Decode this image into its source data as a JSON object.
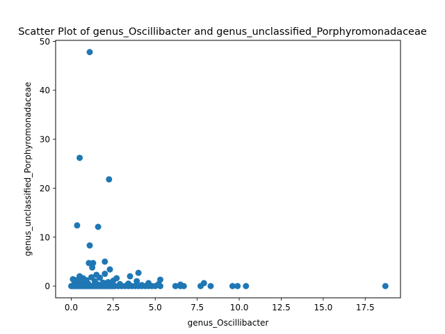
{
  "chart_data": {
    "type": "scatter",
    "title": "Scatter Plot of genus_Oscillibacter and genus_unclassified_Porphyromonadaceae",
    "xlabel": "genus_Oscillibacter",
    "ylabel": "genus_unclassified_Porphyromonadaceae",
    "xlim": [
      -0.93,
      19.6
    ],
    "ylim": [
      -2.4,
      50.2
    ],
    "xticks": [
      0.0,
      2.5,
      5.0,
      7.5,
      10.0,
      12.5,
      15.0,
      17.5
    ],
    "xtick_labels": [
      "0.0",
      "2.5",
      "5.0",
      "7.5",
      "10.0",
      "12.5",
      "15.0",
      "17.5"
    ],
    "yticks": [
      0,
      10,
      20,
      30,
      40,
      50
    ],
    "ytick_labels": [
      "0",
      "10",
      "20",
      "30",
      "40",
      "50"
    ],
    "grid": false,
    "marker_color": "#1f77b4",
    "points": [
      [
        1.1,
        47.8
      ],
      [
        0.5,
        26.2
      ],
      [
        2.25,
        21.8
      ],
      [
        0.35,
        12.4
      ],
      [
        1.6,
        12.1
      ],
      [
        1.1,
        8.3
      ],
      [
        2.0,
        5.0
      ],
      [
        1.05,
        4.7
      ],
      [
        1.3,
        4.7
      ],
      [
        1.25,
        3.8
      ],
      [
        2.3,
        3.4
      ],
      [
        4.0,
        2.7
      ],
      [
        2.0,
        2.5
      ],
      [
        1.5,
        2.3
      ],
      [
        3.5,
        2.0
      ],
      [
        0.5,
        2.0
      ],
      [
        0.7,
        1.6
      ],
      [
        1.2,
        1.8
      ],
      [
        2.7,
        1.6
      ],
      [
        1.7,
        1.7
      ],
      [
        0.1,
        1.4
      ],
      [
        5.3,
        1.3
      ],
      [
        0.3,
        1.2
      ],
      [
        0.9,
        1.2
      ],
      [
        2.5,
        1.1
      ],
      [
        3.9,
        1.0
      ],
      [
        1.4,
        1.0
      ],
      [
        0.6,
        0.9
      ],
      [
        2.2,
        0.8
      ],
      [
        1.9,
        0.7
      ],
      [
        7.9,
        0.6
      ],
      [
        4.6,
        0.6
      ],
      [
        3.4,
        0.5
      ],
      [
        0.2,
        0.5
      ],
      [
        1.0,
        0.5
      ],
      [
        2.9,
        0.4
      ],
      [
        6.5,
        0.3
      ],
      [
        5.2,
        0.4
      ],
      [
        1.6,
        0.3
      ],
      [
        0.4,
        0.3
      ],
      [
        4.2,
        0.2
      ],
      [
        0.8,
        0.2
      ],
      [
        0.0,
        0.0
      ],
      [
        0.1,
        0.0
      ],
      [
        0.2,
        0.0
      ],
      [
        0.3,
        0.0
      ],
      [
        0.4,
        0.0
      ],
      [
        0.5,
        0.0
      ],
      [
        0.6,
        0.0
      ],
      [
        0.7,
        0.0
      ],
      [
        0.8,
        0.0
      ],
      [
        0.9,
        0.0
      ],
      [
        1.0,
        0.0
      ],
      [
        1.1,
        0.0
      ],
      [
        1.2,
        0.0
      ],
      [
        1.3,
        0.0
      ],
      [
        1.4,
        0.0
      ],
      [
        1.5,
        0.0
      ],
      [
        1.6,
        0.0
      ],
      [
        1.7,
        0.0
      ],
      [
        1.8,
        0.0
      ],
      [
        1.9,
        0.0
      ],
      [
        2.0,
        0.0
      ],
      [
        2.1,
        0.0
      ],
      [
        2.2,
        0.0
      ],
      [
        2.3,
        0.0
      ],
      [
        2.4,
        0.0
      ],
      [
        2.5,
        0.0
      ],
      [
        2.6,
        0.0
      ],
      [
        2.8,
        0.0
      ],
      [
        3.0,
        0.0
      ],
      [
        3.2,
        0.0
      ],
      [
        3.4,
        0.0
      ],
      [
        3.6,
        0.0
      ],
      [
        3.8,
        0.0
      ],
      [
        4.0,
        0.0
      ],
      [
        4.2,
        0.0
      ],
      [
        4.4,
        0.0
      ],
      [
        4.6,
        0.0
      ],
      [
        4.8,
        0.0
      ],
      [
        5.0,
        0.0
      ],
      [
        5.3,
        0.0
      ],
      [
        6.2,
        0.0
      ],
      [
        6.5,
        0.0
      ],
      [
        6.7,
        0.0
      ],
      [
        7.7,
        0.0
      ],
      [
        8.3,
        0.0
      ],
      [
        9.6,
        0.0
      ],
      [
        9.9,
        0.0
      ],
      [
        10.4,
        0.0
      ],
      [
        18.7,
        0.0
      ]
    ]
  }
}
